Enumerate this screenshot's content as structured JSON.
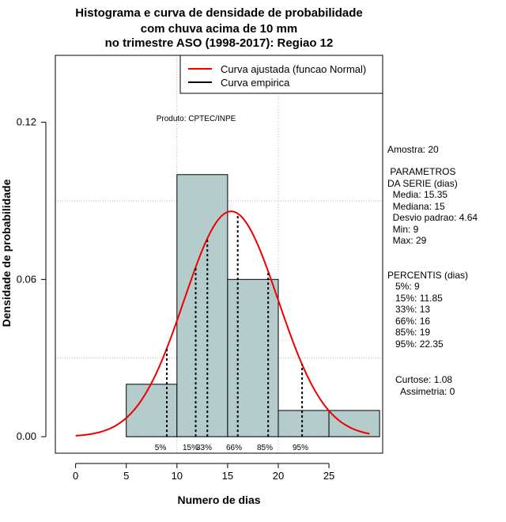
{
  "title_lines": [
    "Histograma e curva de densidade de probabilidade",
    "com chuva acima de 10 mm",
    "no trimestre ASO (1998-2017): Regiao 12"
  ],
  "product_label": "Produto: CPTEC/INPE",
  "side_panel": {
    "sample": "Amostra: 20",
    "params_title_1": " PARAMETROS",
    "params_title_2": "DA SERIE (dias)",
    "params": [
      "  Media: 15.35",
      "  Mediana: 15",
      "  Desvio padrao: 4.64",
      "  Min: 9",
      "  Max: 29"
    ],
    "percentis_title": "PERCENTIS (dias)",
    "percentis": [
      "   5%: 9",
      "   15%: 11.85",
      "   33%: 13",
      "   66%: 16",
      "   85%: 19",
      "   95%: 22.35"
    ],
    "curtose": "   Curtose: 1.08",
    "assimetria": "     Assimetria: 0"
  },
  "chart_data": {
    "type": "bar",
    "xlabel": "Numero de dias",
    "ylabel": "Densidade de probabilidade",
    "xlim": [
      -2,
      30.3
    ],
    "ylim": [
      -0.0063,
      0.1455
    ],
    "x_ticks": [
      0,
      5,
      10,
      15,
      20,
      25
    ],
    "y_ticks": [
      0.0,
      0.06,
      0.12
    ],
    "y_tick_labels": [
      "0.00",
      "0.06",
      "0.12"
    ],
    "grid": true,
    "bins": [
      {
        "x0": 5,
        "x1": 10,
        "density": 0.02
      },
      {
        "x0": 10,
        "x1": 15,
        "density": 0.1
      },
      {
        "x0": 15,
        "x1": 20,
        "density": 0.06
      },
      {
        "x0": 20,
        "x1": 25,
        "density": 0.01
      },
      {
        "x0": 25,
        "x1": 30,
        "density": 0.01
      }
    ],
    "normal_curve": {
      "mean": 15.35,
      "sd": 4.64,
      "x_from": 0,
      "x_to": 29
    },
    "percentiles": [
      {
        "label": "5%",
        "value": 9
      },
      {
        "label": "15%",
        "value": 11.85
      },
      {
        "label": "33%",
        "value": 13
      },
      {
        "label": "66%",
        "value": 16
      },
      {
        "label": "85%",
        "value": 19
      },
      {
        "label": "95%",
        "value": 22.35
      }
    ],
    "legend": {
      "position": "top-right",
      "entries": [
        {
          "label": "Curva ajustada (funcao Normal)",
          "color": "#ee0000"
        },
        {
          "label": "Curva empirica",
          "color": "#000000"
        }
      ]
    },
    "colors": {
      "bar_fill": "#b4cccc",
      "curve": "#ee0000",
      "grid": "#b0b0b0"
    }
  }
}
